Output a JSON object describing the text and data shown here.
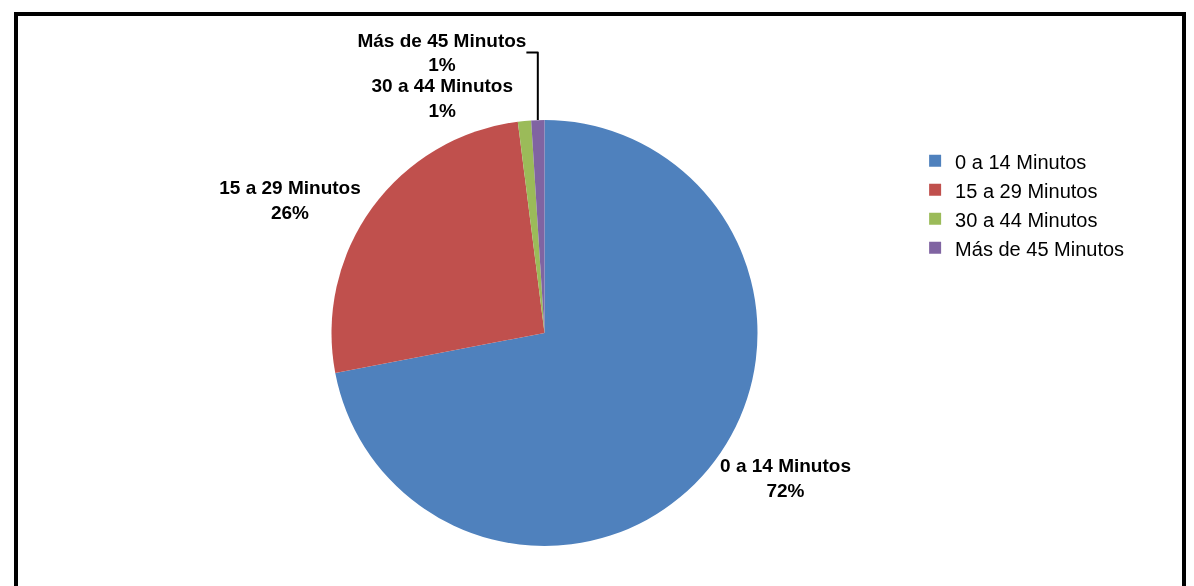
{
  "chart_data": {
    "type": "pie",
    "categories": [
      "0 a 14 Minutos",
      "15 a 29 Minutos",
      "30 a 44 Minutos",
      "Más de 45 Minutos"
    ],
    "values": [
      72,
      26,
      1,
      1
    ],
    "value_labels": [
      "72%",
      "26%",
      "1%",
      "1%"
    ],
    "colors": [
      "#4f81bd",
      "#c0504d",
      "#9bbb59",
      "#8064a2"
    ],
    "legend": "right"
  }
}
